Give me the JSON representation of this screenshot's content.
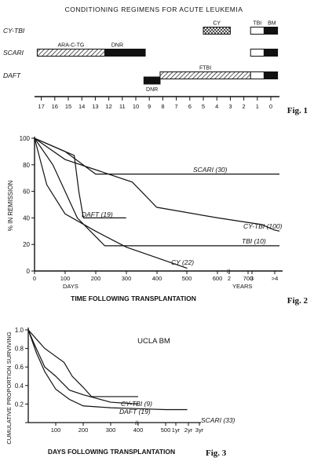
{
  "fig1": {
    "label": "Fig. 1",
    "title": "CONDITIONING REGIMENS FOR ACUTE LEUKEMIA",
    "rows": [
      {
        "name": "CY-TBI",
        "segments": [
          {
            "label": "CY",
            "start": 5,
            "end": 3,
            "pattern": "cross"
          },
          {
            "label": "TBI",
            "start": 1.5,
            "end": 0.5,
            "pattern": "white"
          },
          {
            "label": "BM",
            "start": 0.5,
            "end": -0.5,
            "pattern": "black"
          }
        ]
      },
      {
        "name": "SCARI",
        "segments": [
          {
            "label": "ARA-C-TG",
            "start": 17.3,
            "end": 12.3,
            "pattern": "hatch"
          },
          {
            "label": "DNR",
            "start": 12.3,
            "end": 9.3,
            "pattern": "black"
          },
          {
            "label": "",
            "start": 1.5,
            "end": 0.5,
            "pattern": "white"
          },
          {
            "label": "",
            "start": 0.5,
            "end": -0.5,
            "pattern": "black"
          }
        ]
      },
      {
        "name": "DAFT",
        "segments": [
          {
            "label": "DNR",
            "start": 9.4,
            "end": 8.2,
            "pattern": "black"
          },
          {
            "label": "FTBI",
            "start": 8.2,
            "end": 1.5,
            "pattern": "hatch"
          },
          {
            "label": "",
            "start": 1.5,
            "end": 0.5,
            "pattern": "white"
          },
          {
            "label": "",
            "start": 0.5,
            "end": -0.5,
            "pattern": "black"
          }
        ]
      }
    ],
    "axis_ticks": [
      "17",
      "16",
      "15",
      "14",
      "13",
      "12",
      "11",
      "10",
      "9",
      "8",
      "7",
      "6",
      "5",
      "4",
      "3",
      "2",
      "1",
      "0"
    ]
  },
  "chart_data": [
    {
      "type": "line",
      "figure": "Fig. 2",
      "ylabel": "% IN REMISSION",
      "xlabel": "TIME FOLLOWING TRANSPLANTATION",
      "x_days_label": "DAYS",
      "x_years_label": "YEARS",
      "x_ticks": [
        "0",
        "100",
        "200",
        "300",
        "400",
        "500",
        "600",
        "700",
        "2",
        "3",
        ">4"
      ],
      "y_ticks": [
        "0",
        "20",
        "40",
        "60",
        "80",
        "100"
      ],
      "ylim": [
        0,
        100
      ],
      "series": [
        {
          "name": "SCARI (30)",
          "points": [
            [
              0,
              100
            ],
            [
              100,
              90
            ],
            [
              200,
              73
            ],
            [
              600,
              73
            ],
            [
              1100,
              73
            ]
          ]
        },
        {
          "name": "DAFT (19)",
          "points": [
            [
              0,
              100
            ],
            [
              50,
              95
            ],
            [
              130,
              87
            ],
            [
              145,
              60
            ],
            [
              160,
              40
            ],
            [
              300,
              40
            ]
          ]
        },
        {
          "name": "CY-TBI (100)",
          "points": [
            [
              0,
              100
            ],
            [
              100,
              84
            ],
            [
              320,
              67
            ],
            [
              400,
              48
            ],
            [
              600,
              40
            ],
            [
              800,
              35
            ],
            [
              1000,
              31
            ],
            [
              1100,
              30
            ]
          ]
        },
        {
          "name": "TBI (10)",
          "points": [
            [
              0,
              100
            ],
            [
              60,
              80
            ],
            [
              140,
              40
            ],
            [
              230,
              19
            ],
            [
              600,
              19
            ],
            [
              1100,
              19
            ]
          ]
        },
        {
          "name": "CY (22)",
          "points": [
            [
              0,
              100
            ],
            [
              40,
              65
            ],
            [
              100,
              43
            ],
            [
              200,
              30
            ],
            [
              300,
              18
            ],
            [
              400,
              10
            ],
            [
              500,
              2
            ]
          ]
        }
      ]
    },
    {
      "type": "line",
      "figure": "Fig. 3",
      "title": "UCLA BM",
      "ylabel": "CUMULATIVE PROPORTION SURVIVING",
      "xlabel": "DAYS FOLLOWING TRANSPLANTATION",
      "x_ticks": [
        "100",
        "200",
        "300",
        "400",
        "500",
        "1yr",
        "2yr",
        "3yr"
      ],
      "y_ticks": [
        "0",
        "0.2",
        "0.4",
        "0.6",
        "0.8",
        "1.0"
      ],
      "ylim": [
        0,
        1.0
      ],
      "series": [
        {
          "name": "CY-TBI (9)",
          "points": [
            [
              0,
              1.0
            ],
            [
              30,
              0.9
            ],
            [
              60,
              0.8
            ],
            [
              130,
              0.65
            ],
            [
              160,
              0.5
            ],
            [
              200,
              0.38
            ],
            [
              230,
              0.28
            ],
            [
              400,
              0.28
            ]
          ]
        },
        {
          "name": "DAFT (19)",
          "points": [
            [
              0,
              1.0
            ],
            [
              20,
              0.86
            ],
            [
              60,
              0.6
            ],
            [
              100,
              0.5
            ],
            [
              150,
              0.35
            ],
            [
              200,
              0.3
            ],
            [
              250,
              0.26
            ],
            [
              300,
              0.22
            ],
            [
              400,
              0.2
            ]
          ]
        },
        {
          "name": "SCARI (33)",
          "points": [
            [
              0,
              1.0
            ],
            [
              30,
              0.75
            ],
            [
              60,
              0.55
            ],
            [
              100,
              0.36
            ],
            [
              150,
              0.25
            ],
            [
              200,
              0.18
            ],
            [
              300,
              0.16
            ],
            [
              400,
              0.15
            ],
            [
              500,
              0.14
            ],
            [
              720,
              0.14
            ],
            [
              900,
              0.14
            ]
          ]
        }
      ]
    }
  ],
  "fig2_label": "Fig. 2",
  "fig3_label": "Fig. 3"
}
